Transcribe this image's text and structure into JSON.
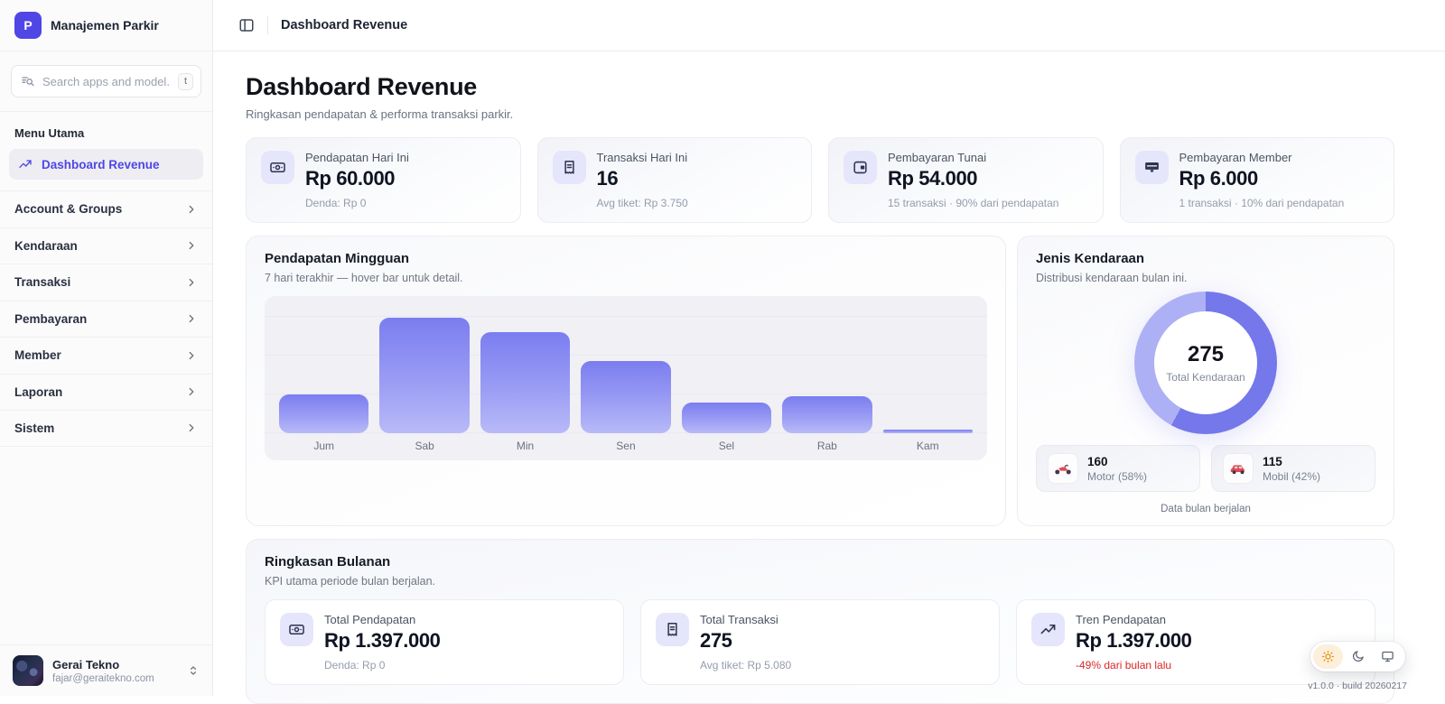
{
  "app": {
    "name": "Manajemen Parkir",
    "logo_letter": "P",
    "version": "v1.0.0 · build 20260217"
  },
  "colors": {
    "accent": "#4f46e5",
    "bar_gradient_top": "#7b7df0",
    "bar_gradient_bottom": "#b8baf8",
    "donut_primary": "#7478ea",
    "donut_secondary": "#adb0f4",
    "negative": "#dc2626",
    "theme_active": "#e8930c"
  },
  "sidebar": {
    "search": {
      "placeholder": "Search apps and model...",
      "shortcut": "t",
      "icon": "list-search-icon"
    },
    "section_label": "Menu Utama",
    "active_item": {
      "label": "Dashboard Revenue",
      "icon": "trending-up-icon"
    },
    "groups": [
      "Account & Groups",
      "Kendaraan",
      "Transaksi",
      "Pembayaran",
      "Member",
      "Laporan",
      "Sistem"
    ],
    "user": {
      "name": "Gerai Tekno",
      "email": "fajar@geraitekno.com"
    }
  },
  "header": {
    "breadcrumb": "Dashboard Revenue",
    "toggle_icon": "panel-left-icon"
  },
  "page": {
    "title": "Dashboard Revenue",
    "subtitle": "Ringkasan pendapatan & performa transaksi parkir."
  },
  "stats": [
    {
      "icon": "banknote-icon",
      "label": "Pendapatan Hari Ini",
      "value": "Rp 60.000",
      "sub": "Denda: Rp 0"
    },
    {
      "icon": "receipt-icon",
      "label": "Transaksi Hari Ini",
      "value": "16",
      "sub": "Avg tiket: Rp 3.750"
    },
    {
      "icon": "wallet-icon",
      "label": "Pembayaran Tunai",
      "value": "Rp 54.000",
      "sub": "15 transaksi · 90% dari pendapatan"
    },
    {
      "icon": "card-terminal-icon",
      "label": "Pembayaran Member",
      "value": "Rp 6.000",
      "sub": "1 transaksi · 10% dari pendapatan"
    }
  ],
  "weekly": {
    "title": "Pendapatan Mingguan",
    "subtitle": "7 hari terakhir — hover bar untuk detail."
  },
  "vehicle": {
    "title": "Jenis Kendaraan",
    "subtitle": "Distribusi kendaraan bulan ini.",
    "total": "275",
    "total_label": "Total Kendaraan",
    "legend": [
      {
        "icon": "motorcycle-icon",
        "value": "160",
        "label": "Motor (58%)"
      },
      {
        "icon": "car-icon",
        "value": "115",
        "label": "Mobil (42%)"
      }
    ],
    "footer": "Data bulan berjalan"
  },
  "monthly": {
    "title": "Ringkasan Bulanan",
    "subtitle": "KPI utama periode bulan berjalan.",
    "cards": [
      {
        "icon": "banknote-icon",
        "label": "Total Pendapatan",
        "value": "Rp 1.397.000",
        "sub": "Denda: Rp 0"
      },
      {
        "icon": "receipt-icon",
        "label": "Total Transaksi",
        "value": "275",
        "sub": "Avg tiket: Rp 5.080"
      },
      {
        "icon": "trending-up-icon",
        "label": "Tren Pendapatan",
        "value": "Rp 1.397.000",
        "sub": "-49% dari bulan lalu",
        "sub_negative": true
      }
    ]
  },
  "theme_switcher": {
    "options": [
      "light",
      "dark",
      "system"
    ],
    "active": "light"
  },
  "chart_data": [
    {
      "type": "bar",
      "title": "Pendapatan Mingguan",
      "subtitle": "7 hari terakhir — hover bar untuk detail.",
      "categories": [
        "Jum",
        "Sab",
        "Min",
        "Sen",
        "Sel",
        "Rab",
        "Kam"
      ],
      "values": [
        30,
        90,
        79,
        56,
        24,
        29,
        3
      ],
      "units": "percent of plot height (no y-axis tick labels shown in chart)",
      "xlabel": "",
      "ylabel": "",
      "grid": "faint horizontal lines",
      "legend_position": "none",
      "bar_color_top": "#7b7df0",
      "bar_color_bottom": "#b8baf8"
    },
    {
      "type": "pie",
      "variant": "donut",
      "title": "Jenis Kendaraan",
      "center_value": "275",
      "center_label": "Total Kendaraan",
      "slices": [
        {
          "label": "Motor",
          "value": 160,
          "percent": 58,
          "color": "#7478ea"
        },
        {
          "label": "Mobil",
          "value": 115,
          "percent": 42,
          "color": "#adb0f4"
        }
      ],
      "legend_position": "bottom"
    }
  ]
}
